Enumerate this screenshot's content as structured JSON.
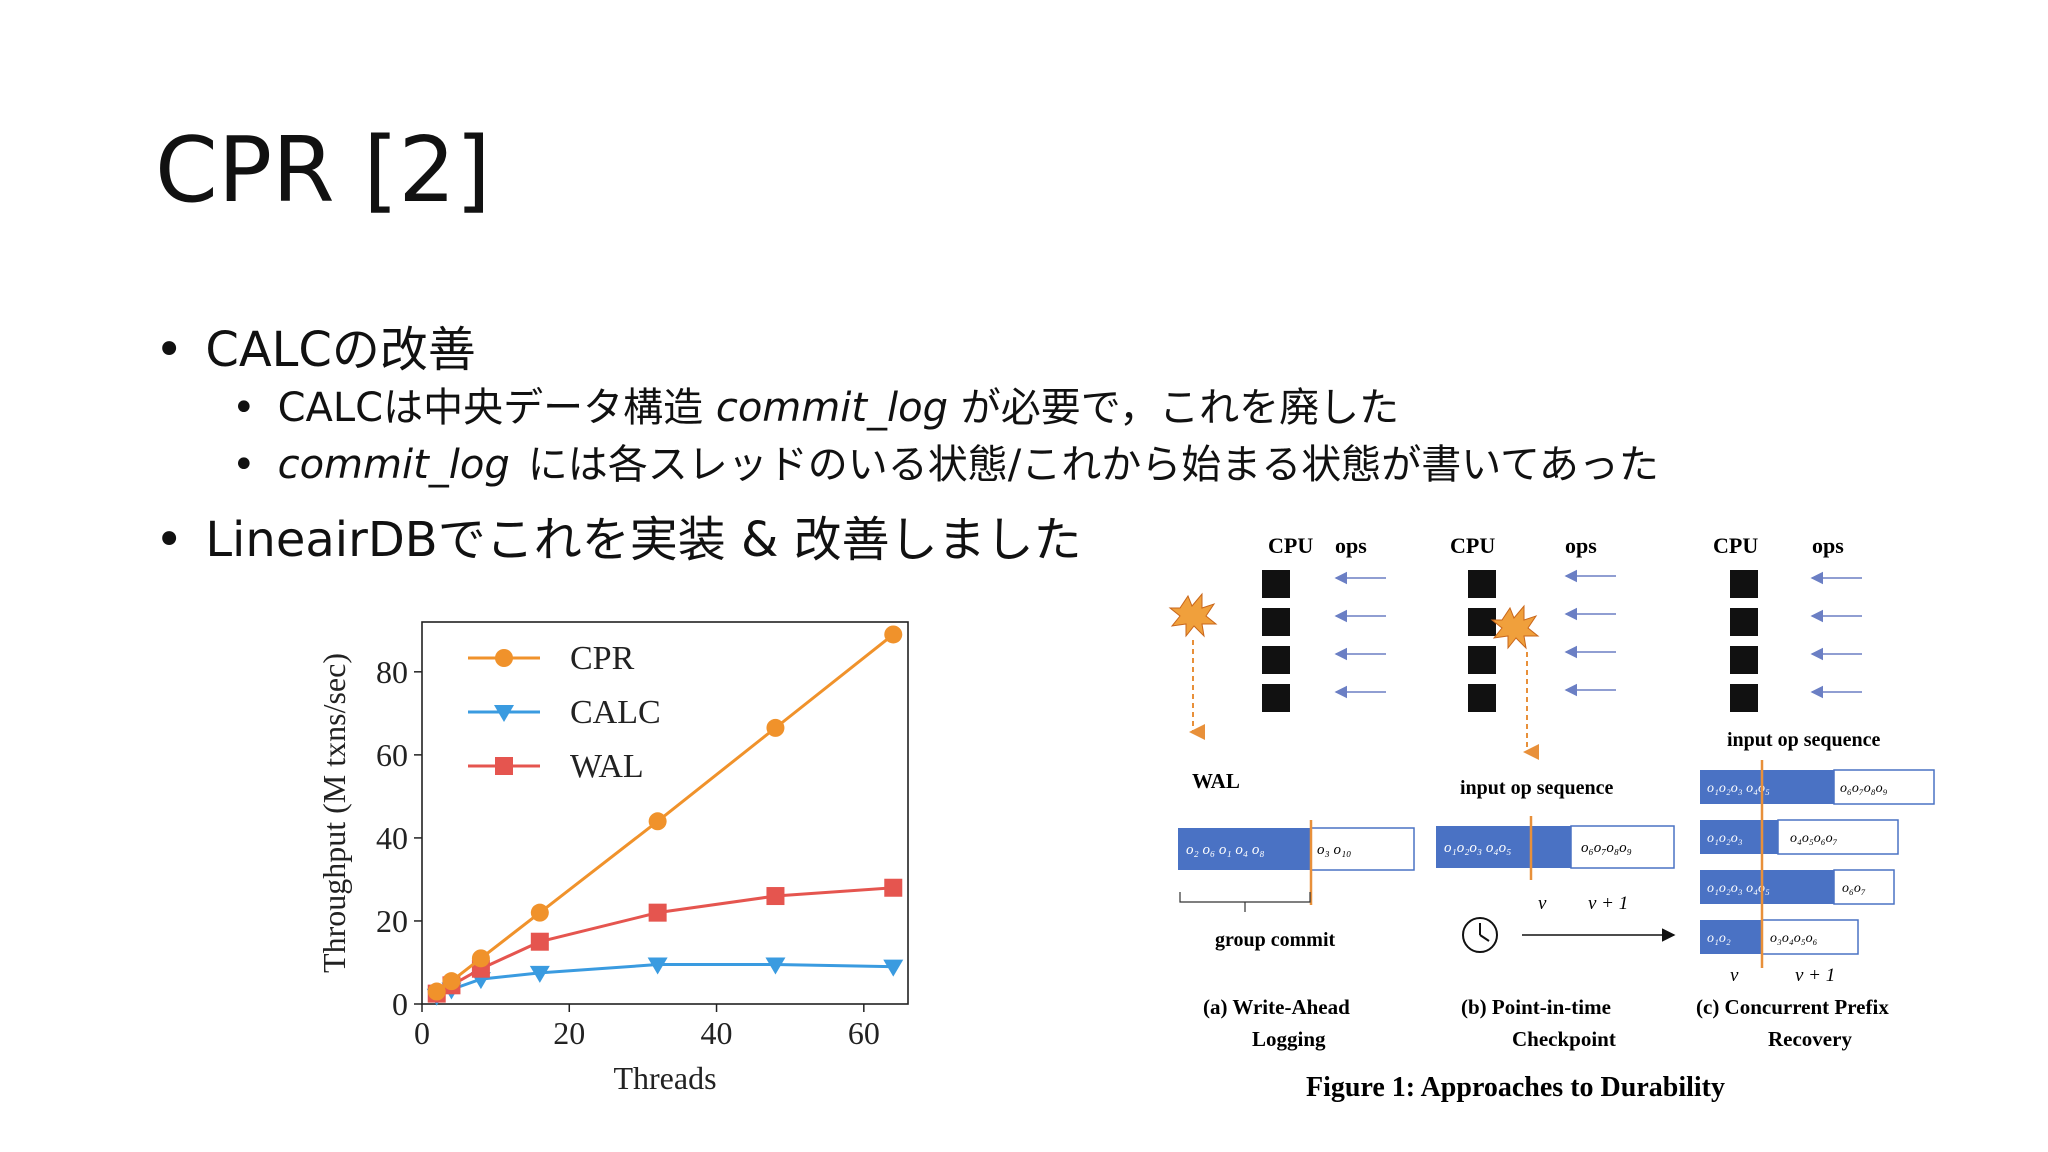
{
  "slide": {
    "title": "CPR  [2]",
    "bullets": [
      {
        "text": "CALCの改善"
      },
      {
        "pre": "CALCは中央データ構造 ",
        "em": "commit_log",
        "post": " が必要で，これを廃した"
      },
      {
        "em": "commit_log",
        "post": "には各スレッドのいる状態/これから始まる状態が書いてあった"
      },
      {
        "text": "LineairDBでこれを実装 & 改善しました"
      }
    ],
    "bullet_glyph": "•"
  },
  "chart_data": {
    "type": "line",
    "xlabel": "Threads",
    "ylabel": "Throughput (M txns/sec)",
    "xlim": [
      0,
      66
    ],
    "ylim": [
      0,
      92
    ],
    "xticks": [
      0,
      20,
      40,
      60
    ],
    "yticks": [
      0,
      20,
      40,
      60,
      80
    ],
    "x": [
      2,
      4,
      8,
      16,
      32,
      48,
      64
    ],
    "legend_position": "top-left",
    "grid": false,
    "series": [
      {
        "name": "CPR",
        "color": "#f0922b",
        "marker": "circle",
        "values": [
          3,
          5.5,
          11,
          22,
          44,
          66.5,
          89
        ]
      },
      {
        "name": "CALC",
        "color": "#3a9be0",
        "marker": "triangle",
        "values": [
          2,
          3.5,
          6,
          7.5,
          9.5,
          9.5,
          9
        ]
      },
      {
        "name": "WAL",
        "color": "#e5554f",
        "marker": "square",
        "values": [
          2.5,
          4.5,
          8.5,
          15,
          22,
          26,
          28
        ]
      }
    ]
  },
  "figure": {
    "caption": "Figure 1: Approaches to Durability",
    "cpu_label": "CPU",
    "ops_label": "ops",
    "wal_label": "WAL",
    "input_op_label": "input op sequence",
    "group_commit_label": "group commit",
    "v_label": "v",
    "v1_label": "v + 1",
    "panel_a": [
      "(a) Write-Ahead",
      "Logging"
    ],
    "panel_b": [
      "(b) Point-in-time",
      "Checkpoint"
    ],
    "panel_c": [
      "(c) Concurrent Prefix",
      "Recovery"
    ],
    "wal_left": "o₂ o₆ o₁ o₄ o₈",
    "wal_right": "o₃ o₁₀",
    "b_left": "o₁o₂o₃ o₄o₅",
    "b_right": "o₆o₇o₈o₉",
    "c_rows": [
      {
        "left": "o₁o₂o₃ o₄o₅",
        "right": "o₆o₇o₈o₉"
      },
      {
        "left": "o₁o₂o₃",
        "right": "o₄o₅o₆o₇"
      },
      {
        "left": "o₁o₂o₃ o₄o₅",
        "right": "o₆o₇"
      },
      {
        "left": "o₁o₂",
        "right": "o₃o₄o₅o₆"
      }
    ],
    "colors": {
      "block": "#4a72c4",
      "divider": "#e8903a",
      "arrow": "#6b7fc4",
      "burst": "#f0a03c"
    }
  }
}
